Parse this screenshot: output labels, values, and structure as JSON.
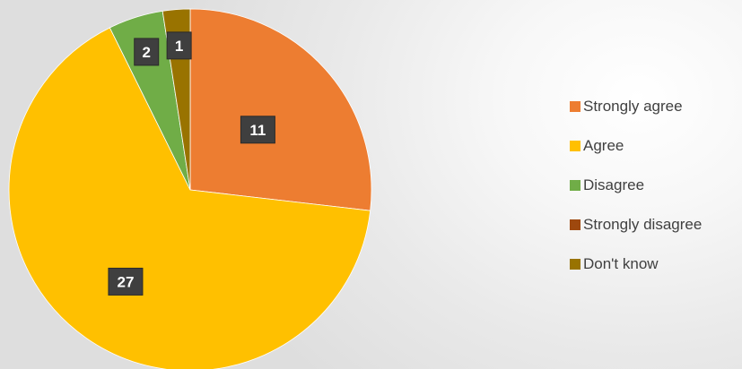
{
  "chart_data": {
    "type": "pie",
    "title": "",
    "categories": [
      "Strongly agree",
      "Agree",
      "Disagree",
      "Strongly disagree",
      "Don't know"
    ],
    "values": [
      11,
      27,
      2,
      0,
      1
    ],
    "colors": [
      "#ed7d31",
      "#ffc000",
      "#70ad47",
      "#9e480e",
      "#997300"
    ],
    "data_labels": [
      "11",
      "27",
      "2",
      "",
      "1"
    ],
    "legend_position": "right"
  }
}
